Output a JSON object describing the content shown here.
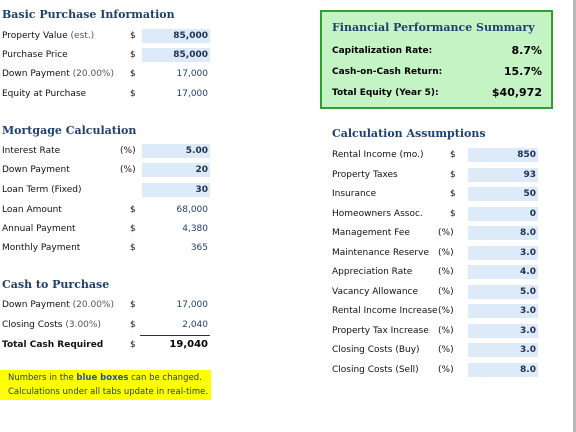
{
  "basic": {
    "title": "Basic Purchase Information",
    "rows": [
      {
        "label": "Property Value",
        "sub": "(est.)",
        "unit": "$",
        "value": "85,000",
        "input": true
      },
      {
        "label": "Purchase Price",
        "sub": "",
        "unit": "$",
        "value": "85,000",
        "input": true
      },
      {
        "label": "Down Payment",
        "sub": "(20.00%)",
        "unit": "$",
        "value": "17,000",
        "input": false
      },
      {
        "label": "Equity at Purchase",
        "sub": "",
        "unit": "$",
        "value": "17,000",
        "input": false
      }
    ]
  },
  "mortgage": {
    "title": "Mortgage Calculation",
    "rows": [
      {
        "label": "Interest Rate",
        "unit": "(%)",
        "value": "5.00",
        "input": true
      },
      {
        "label": "Down Payment",
        "unit": "(%)",
        "value": "20",
        "input": true
      },
      {
        "label": "Loan Term (Fixed)",
        "unit": "",
        "value": "30",
        "input": true
      },
      {
        "label": "Loan Amount",
        "unit": "$",
        "value": "68,000",
        "input": false
      },
      {
        "label": "Annual Payment",
        "unit": "$",
        "value": "4,380",
        "input": false
      },
      {
        "label": "Monthly Payment",
        "unit": "$",
        "value": "365",
        "input": false
      }
    ]
  },
  "cash": {
    "title": "Cash to Purchase",
    "rows": [
      {
        "label": "Down Payment",
        "sub": "(20.00%)",
        "unit": "$",
        "value": "17,000"
      },
      {
        "label": "Closing Costs",
        "sub": "(3.00%)",
        "unit": "$",
        "value": "2,040"
      }
    ],
    "total": {
      "label": "Total Cash Required",
      "unit": "$",
      "value": "19,040"
    }
  },
  "note": {
    "line1_a": "Numbers in the ",
    "line1_b": "blue boxes",
    "line1_c": " can be changed.",
    "line2": "Calculations under all tabs update in real-time."
  },
  "summary": {
    "title": "Financial Performance Summary",
    "rows": [
      {
        "label": "Capitalization Rate:",
        "value": "8.7%"
      },
      {
        "label": "Cash-on-Cash Return:",
        "value": "15.7%"
      },
      {
        "label": "Total Equity (Year 5):",
        "value": "$40,972"
      }
    ]
  },
  "assumptions": {
    "title": "Calculation Assumptions",
    "rows": [
      {
        "label": "Rental Income (mo.)",
        "unit": "$",
        "value": "850"
      },
      {
        "label": "Property Taxes",
        "unit": "$",
        "value": "93"
      },
      {
        "label": "Insurance",
        "unit": "$",
        "value": "50"
      },
      {
        "label": "Homeowners Assoc.",
        "unit": "$",
        "value": "0"
      },
      {
        "label": "Management Fee",
        "unit": "(%)",
        "value": "8.0"
      },
      {
        "label": "Maintenance Reserve",
        "unit": "(%)",
        "value": "3.0"
      },
      {
        "label": "Appreciation Rate",
        "unit": "(%)",
        "value": "4.0"
      },
      {
        "label": "Vacancy Allowance",
        "unit": "(%)",
        "value": "5.0"
      },
      {
        "label": "Rental Income Increase",
        "unit": "(%)",
        "value": "3.0"
      },
      {
        "label": "Property Tax Increase",
        "unit": "(%)",
        "value": "3.0"
      },
      {
        "label": "Closing Costs (Buy)",
        "unit": "(%)",
        "value": "3.0"
      },
      {
        "label": "Closing Costs (Sell)",
        "unit": "(%)",
        "value": "8.0"
      }
    ]
  }
}
